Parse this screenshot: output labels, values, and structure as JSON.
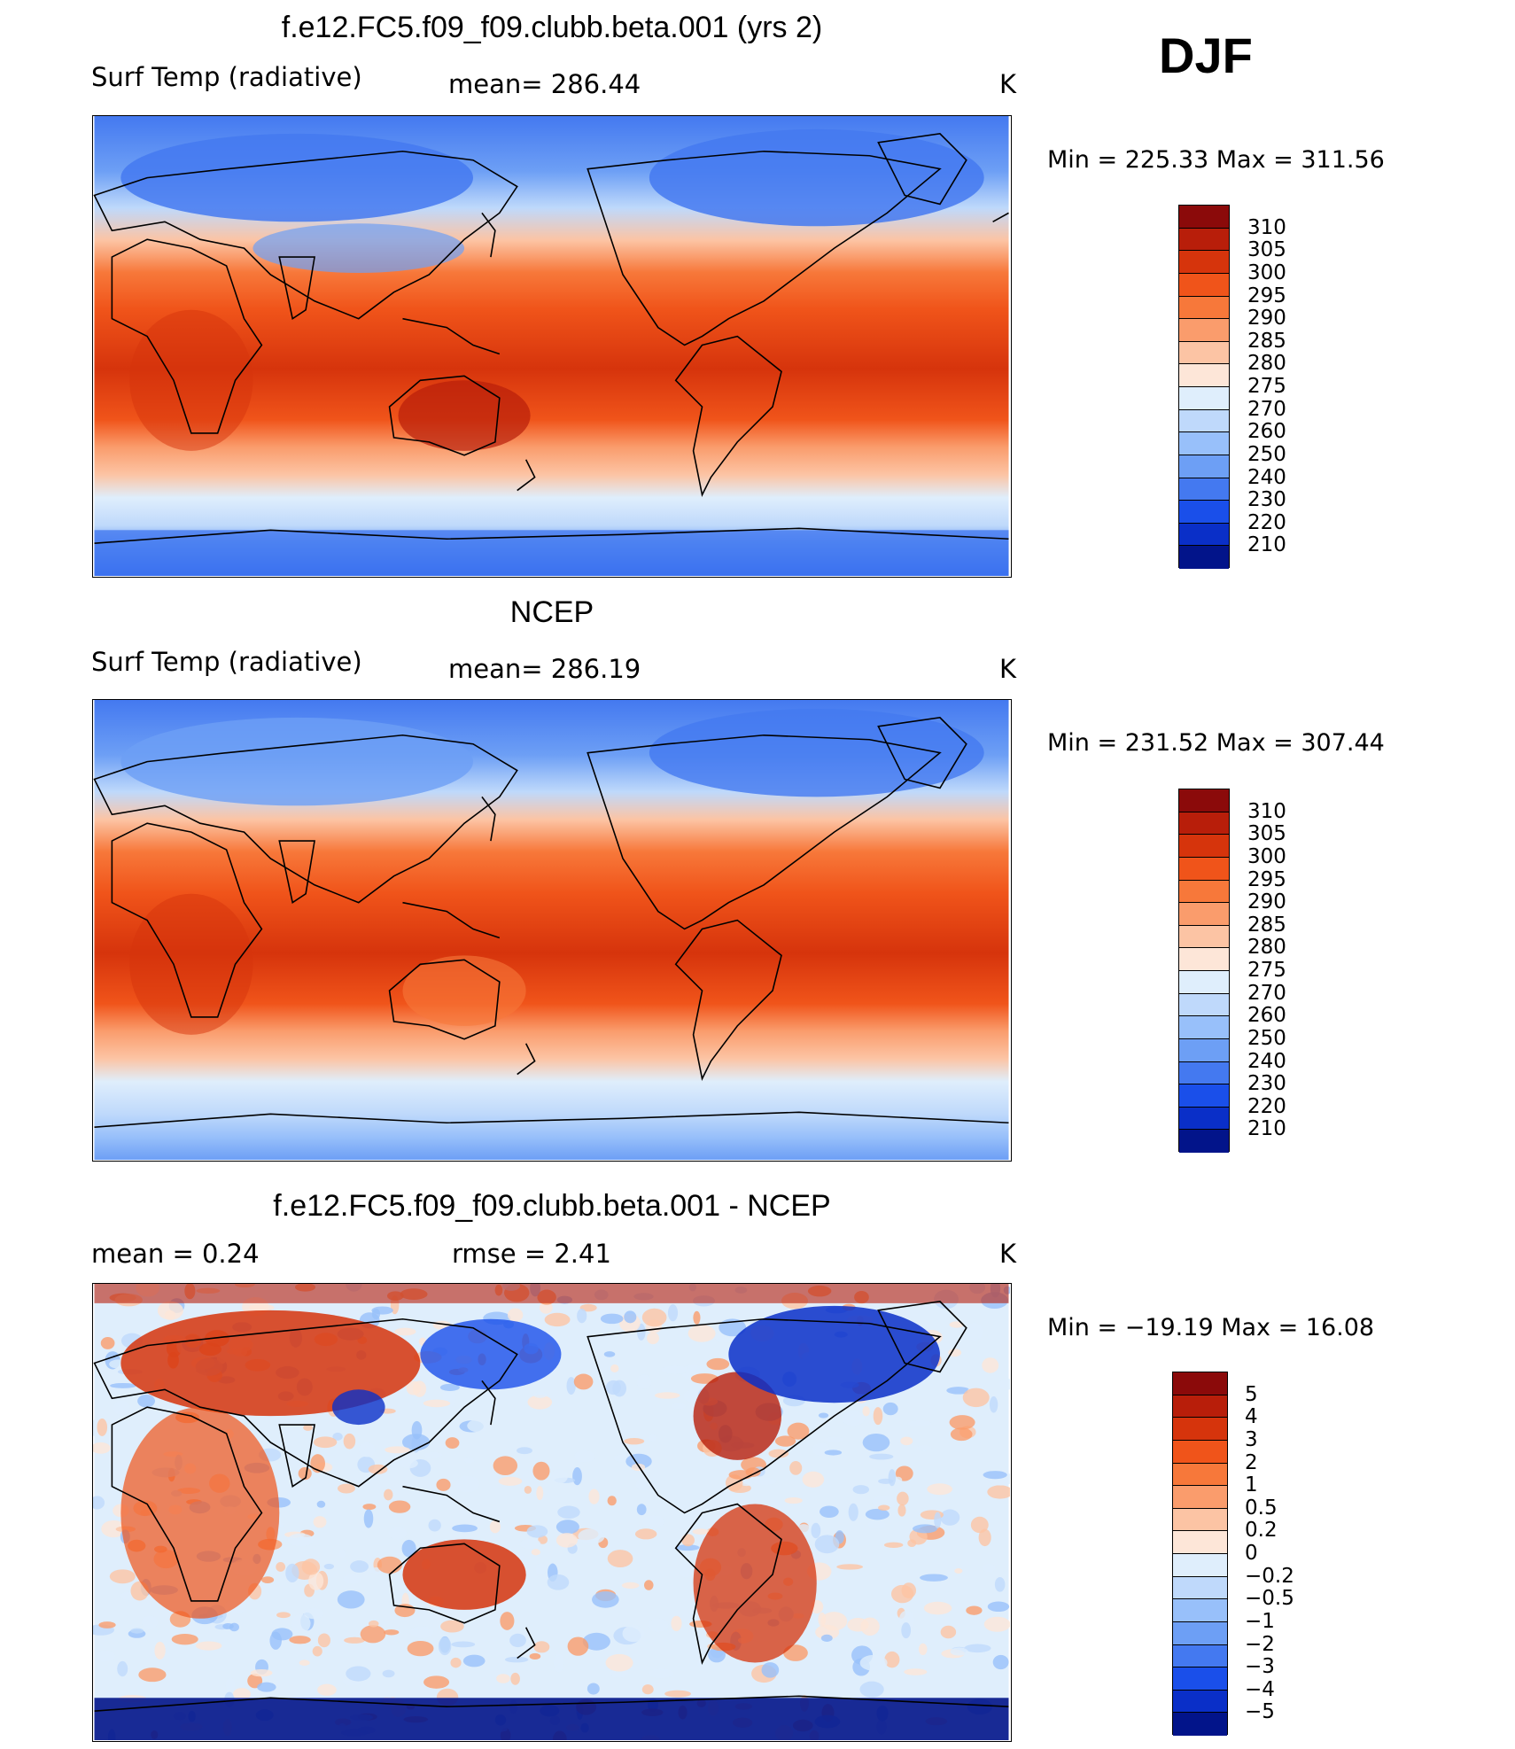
{
  "season": "DJF",
  "panels": [
    {
      "title": "f.e12.FC5.f09_f09.clubb.beta.001 (yrs 2)",
      "left_label": "Surf Temp (radiative)",
      "center_label": "mean=  286.44",
      "units": "K",
      "minmax": "Min  =  225.33  Max  =  311.56",
      "kind": "abs"
    },
    {
      "title": "NCEP",
      "left_label": "Surf Temp (radiative)",
      "center_label": "mean=  286.19",
      "units": "K",
      "minmax": "Min  =  231.52  Max  =  307.44",
      "kind": "abs"
    },
    {
      "title": "f.e12.FC5.f09_f09.clubb.beta.001 - NCEP",
      "left_label": "mean  =      0.24",
      "center_label": "rmse  =      2.41",
      "units": "K",
      "minmax": "Min  =  −19.19  Max  =    16.08",
      "kind": "diff"
    }
  ],
  "colorbar_abs": {
    "labels": [
      "310",
      "305",
      "300",
      "295",
      "290",
      "285",
      "280",
      "275",
      "270",
      "260",
      "250",
      "240",
      "230",
      "220",
      "210"
    ],
    "colors": [
      "#8b0a0a",
      "#b81e0a",
      "#d6340c",
      "#f0541a",
      "#f7783a",
      "#fa9c6c",
      "#fcc4a4",
      "#fde6d8",
      "#dfeefc",
      "#bfd9fb",
      "#98c0fa",
      "#6d9ff5",
      "#4479f0",
      "#1a4fea",
      "#0a2fc8",
      "#02148a"
    ]
  },
  "colorbar_diff": {
    "labels": [
      "5",
      "4",
      "3",
      "2",
      "1",
      "0.5",
      "0.2",
      "0",
      "−0.2",
      "−0.5",
      "−1",
      "−2",
      "−3",
      "−4",
      "−5"
    ],
    "colors": [
      "#8b0a0a",
      "#b81e0a",
      "#d6340c",
      "#f0541a",
      "#f7783a",
      "#fa9c6c",
      "#fcc4a4",
      "#fde6d8",
      "#dfeefc",
      "#bfd9fb",
      "#98c0fa",
      "#6d9ff5",
      "#4479f0",
      "#1a4fea",
      "#0a2fc8",
      "#02148a"
    ]
  }
}
